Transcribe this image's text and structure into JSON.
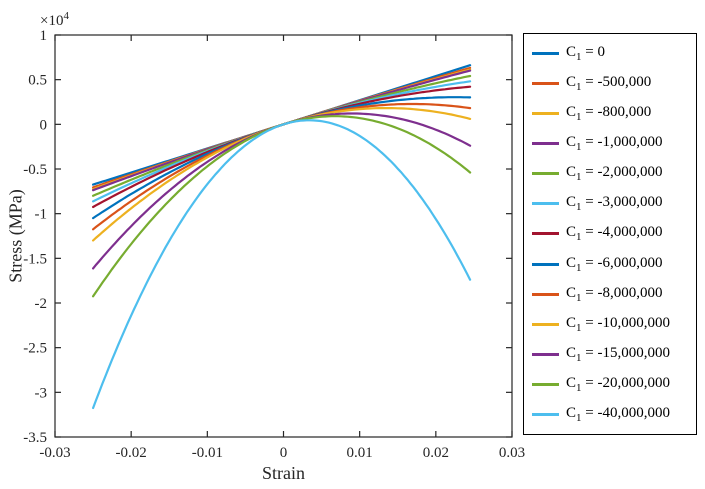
{
  "chart_data": {
    "type": "line",
    "title": "",
    "xlabel": "Strain",
    "ylabel": "Stress (MPa)",
    "y_scale_prefix": "×10",
    "y_scale_exponent": "4",
    "xlim": [
      -0.03,
      0.03
    ],
    "ylim": [
      -35000,
      10000
    ],
    "x_ticks": [
      -0.03,
      -0.02,
      -0.01,
      0,
      0.01,
      0.02,
      0.03
    ],
    "x_tick_labels": [
      "-0.03",
      "-0.02",
      "-0.01",
      "0",
      "0.01",
      "0.02",
      "0.03"
    ],
    "y_ticks": [
      10000,
      5000,
      0,
      -5000,
      -10000,
      -15000,
      -20000,
      -25000,
      -30000,
      -35000
    ],
    "y_tick_labels": [
      "1",
      "0.5",
      "0",
      "-0.5",
      "-1",
      "-1.5",
      "-2",
      "-2.5",
      "-3",
      "-3.5"
    ],
    "grid": false,
    "legend_position": "right-outside",
    "model": "stress_MPa = E*strain + C1*strain^2",
    "E_MPa": 270000,
    "strain_range": [
      -0.025,
      0.0245
    ],
    "legend": {
      "var_name": "C",
      "var_subscript": "1",
      "equals_sign": " = "
    },
    "series": [
      {
        "label_value": "0",
        "C1": 0,
        "color": "#0072BD"
      },
      {
        "label_value": "-500,000",
        "C1": -500000,
        "color": "#D95319"
      },
      {
        "label_value": "-800,000",
        "C1": -800000,
        "color": "#EDB120"
      },
      {
        "label_value": "-1,000,000",
        "C1": -1000000,
        "color": "#7E2F8E"
      },
      {
        "label_value": "-2,000,000",
        "C1": -2000000,
        "color": "#77AC30"
      },
      {
        "label_value": "-3,000,000",
        "C1": -3000000,
        "color": "#4DBEEE"
      },
      {
        "label_value": "-4,000,000",
        "C1": -4000000,
        "color": "#A2142F"
      },
      {
        "label_value": "-6,000,000",
        "C1": -6000000,
        "color": "#0072BD"
      },
      {
        "label_value": "-8,000,000",
        "C1": -8000000,
        "color": "#D95319"
      },
      {
        "label_value": "-10,000,000",
        "C1": -10000000,
        "color": "#EDB120"
      },
      {
        "label_value": "-15,000,000",
        "C1": -15000000,
        "color": "#7E2F8E"
      },
      {
        "label_value": "-20,000,000",
        "C1": -20000000,
        "color": "#77AC30"
      },
      {
        "label_value": "-40,000,000",
        "C1": -40000000,
        "color": "#4DBEEE"
      }
    ]
  }
}
